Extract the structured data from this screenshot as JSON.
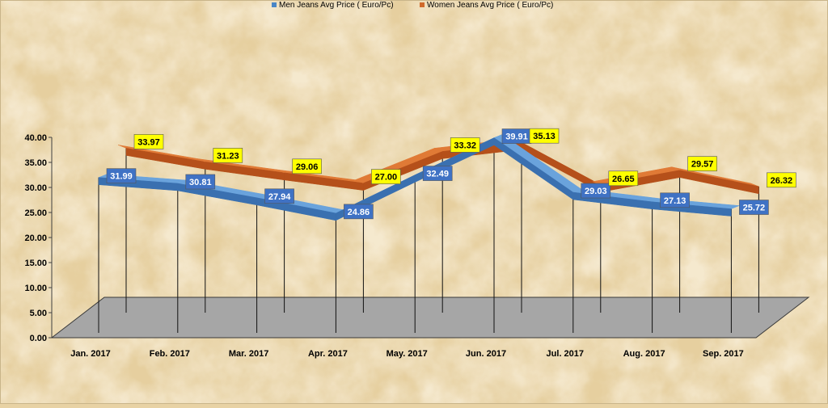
{
  "chart_data": {
    "type": "line",
    "title": "",
    "xlabel": "",
    "ylabel": "",
    "categories": [
      "Jan. 2017",
      "Feb. 2017",
      "Mar. 2017",
      "Apr. 2017",
      "May. 2017",
      "Jun. 2017",
      "Jul. 2017",
      "Aug. 2017",
      "Sep. 2017"
    ],
    "ylim": [
      0,
      40
    ],
    "yticks": [
      "0.00",
      "5.00",
      "10.00",
      "15.00",
      "20.00",
      "25.00",
      "30.00",
      "35.00",
      "40.00"
    ],
    "grid": false,
    "legend_position": "top",
    "series": [
      {
        "name": "Men Jeans Avg Price ( Euro/Pc)",
        "color": "#4a86c6",
        "label_bg": "#3f72c4",
        "values": [
          31.99,
          30.81,
          27.94,
          24.86,
          32.49,
          39.91,
          29.03,
          27.13,
          25.72
        ],
        "labels": [
          "31.99",
          "30.81",
          "27.94",
          "24.86",
          "32.49",
          "39.91",
          "29.03",
          "27.13",
          "25.72"
        ]
      },
      {
        "name": "Women Jeans Avg Price ( Euro/Pc)",
        "color": "#d0692a",
        "label_bg": "#ffff00",
        "values": [
          33.97,
          31.23,
          29.06,
          27.0,
          33.32,
          35.13,
          26.65,
          29.57,
          26.32
        ],
        "labels": [
          "33.97",
          "31.23",
          "29.06",
          "27.00",
          "33.32",
          "35.13",
          "26.65",
          "29.57",
          "26.32"
        ]
      }
    ]
  }
}
